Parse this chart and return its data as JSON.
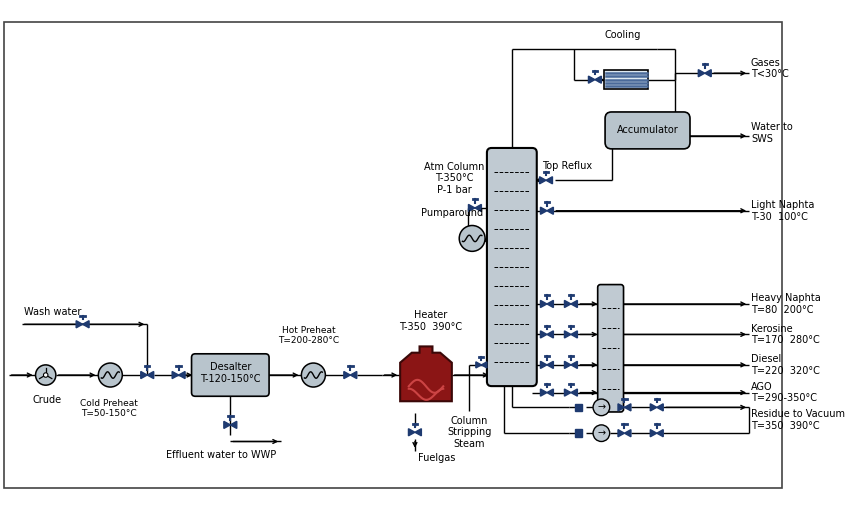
{
  "bg_color": "#ffffff",
  "line_color": "#000000",
  "equip_color": "#b8c4cc",
  "equip_edge": "#555555",
  "valve_color": "#1e3a70",
  "heater_color": "#8b1515",
  "cooler_fill": "#dde8f0",
  "cooler_line": "#4a6a9a",
  "acc_color": "#b8c4cc",
  "text_color": "#000000",
  "labels": {
    "crude": "Crude",
    "wash_water": "Wash water",
    "cold_preheat": "Cold Preheat\nT=50-150°C",
    "desalter": "Desalter\nT-120-150°C",
    "hot_preheat": "Hot Preheat\nT=200-280°C",
    "heater": "Heater\nT-350  390°C",
    "atm_column": "Atm Column\nT-350°C\nP-1 bar",
    "pumparound": "Pumparound",
    "fuelgas": "Fuelgas",
    "column_stripping": "Column\nStripping\nSteam",
    "effluent": "Effluent water to WWP",
    "cooling": "Cooling",
    "accumulator": "Accumulator",
    "top_reflux": "Top Reflux",
    "gases": "Gases\nT<30°C",
    "water_sws": "Water to\nSWS",
    "light_naphta": "Light Naphta\nT-30  100°C",
    "heavy_naphta": "Heavy Naphta\nT=80  200°C",
    "kerosine": "Kerosine\nT=170  280°C",
    "diesel": "Diesel\nT=220  320°C",
    "ago": "AGO\nT=290-350°C",
    "residue": "Residue to Vacuum\nT=350  390°C"
  }
}
